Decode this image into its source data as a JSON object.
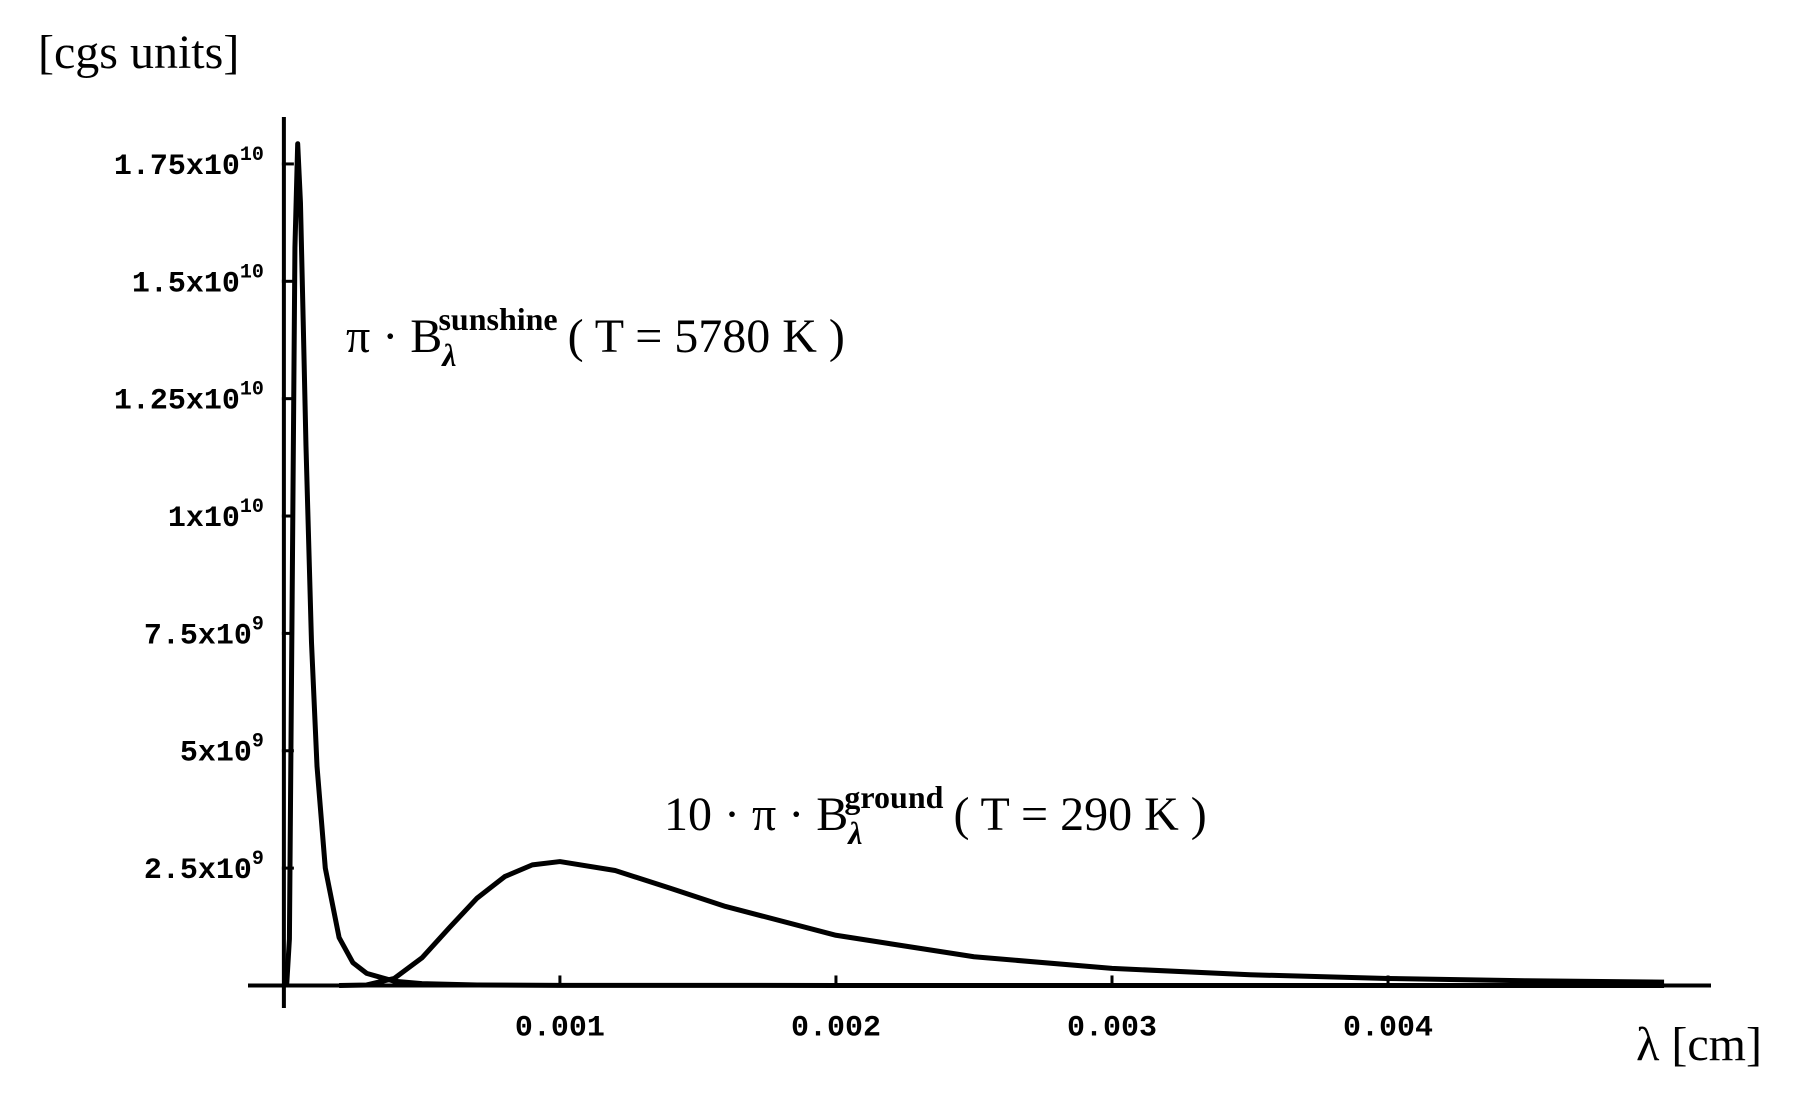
{
  "chart_data": {
    "type": "line",
    "y_label": "[cgs units]",
    "x_label": "λ [cm]",
    "xlim": [
      -0.00013,
      0.00517
    ],
    "ylim": [
      -480000000,
      18500000000
    ],
    "xticks": [
      0.001,
      0.002,
      0.003,
      0.004
    ],
    "yticks": [
      {
        "value": 2500000000,
        "label": "2.5x10",
        "exponent": "9"
      },
      {
        "value": 5000000000,
        "label": "5x10",
        "exponent": "9"
      },
      {
        "value": 7500000000,
        "label": "7.5x10",
        "exponent": "9"
      },
      {
        "value": 10000000000,
        "label": "1x10",
        "exponent": "10"
      },
      {
        "value": 12500000000,
        "label": "1.25x10",
        "exponent": "10"
      },
      {
        "value": 15000000000,
        "label": "1.5x10",
        "exponent": "10"
      },
      {
        "value": 17500000000,
        "label": "1.75x10",
        "exponent": "10"
      }
    ],
    "series": [
      {
        "color": "#000000",
        "x": [
          1e-05,
          2e-05,
          3e-05,
          4e-05,
          5e-05,
          6e-05,
          7e-05,
          8e-05,
          0.0001,
          0.00012,
          0.00015,
          0.0002,
          0.00025,
          0.0003,
          0.0004,
          0.0005,
          0.0007,
          0.001,
          0.002,
          0.005
        ],
        "values": [
          126000,
          990000000,
          8290000000,
          15720000000,
          17930000000,
          16680000000,
          14140000000,
          11500000000,
          7310000000,
          4670000000,
          2500000000,
          1021000000,
          485000000,
          257000000,
          91000000,
          40000000,
          11000000,
          2900000,
          190000,
          5200
        ]
      },
      {
        "color": "#000000",
        "x": [
          0.0002,
          0.0003,
          0.0004,
          0.0005,
          0.0006,
          0.0007,
          0.0008,
          0.0009,
          0.001,
          0.0012,
          0.0014,
          0.0016,
          0.002,
          0.0025,
          0.003,
          0.0035,
          0.004,
          0.0045,
          0.005
        ],
        "values": [
          19800,
          10100000,
          150000000,
          587000000,
          1234000000,
          1861000000,
          2319000000,
          2569000000,
          2639000000,
          2449000000,
          2071000000,
          1683000000,
          1069000000,
          611000000,
          364000000,
          228000000,
          148800000,
          100800000,
          70600000
        ]
      }
    ],
    "annotations": [
      {
        "prefix": "π · B",
        "sub": "λ",
        "sup": "sunshine",
        "suffix": "( T = 5780 K )"
      },
      {
        "prefix": "10 · π · B",
        "sub": "λ",
        "sup": "ground",
        "suffix": "( T = 290 K )"
      }
    ]
  }
}
